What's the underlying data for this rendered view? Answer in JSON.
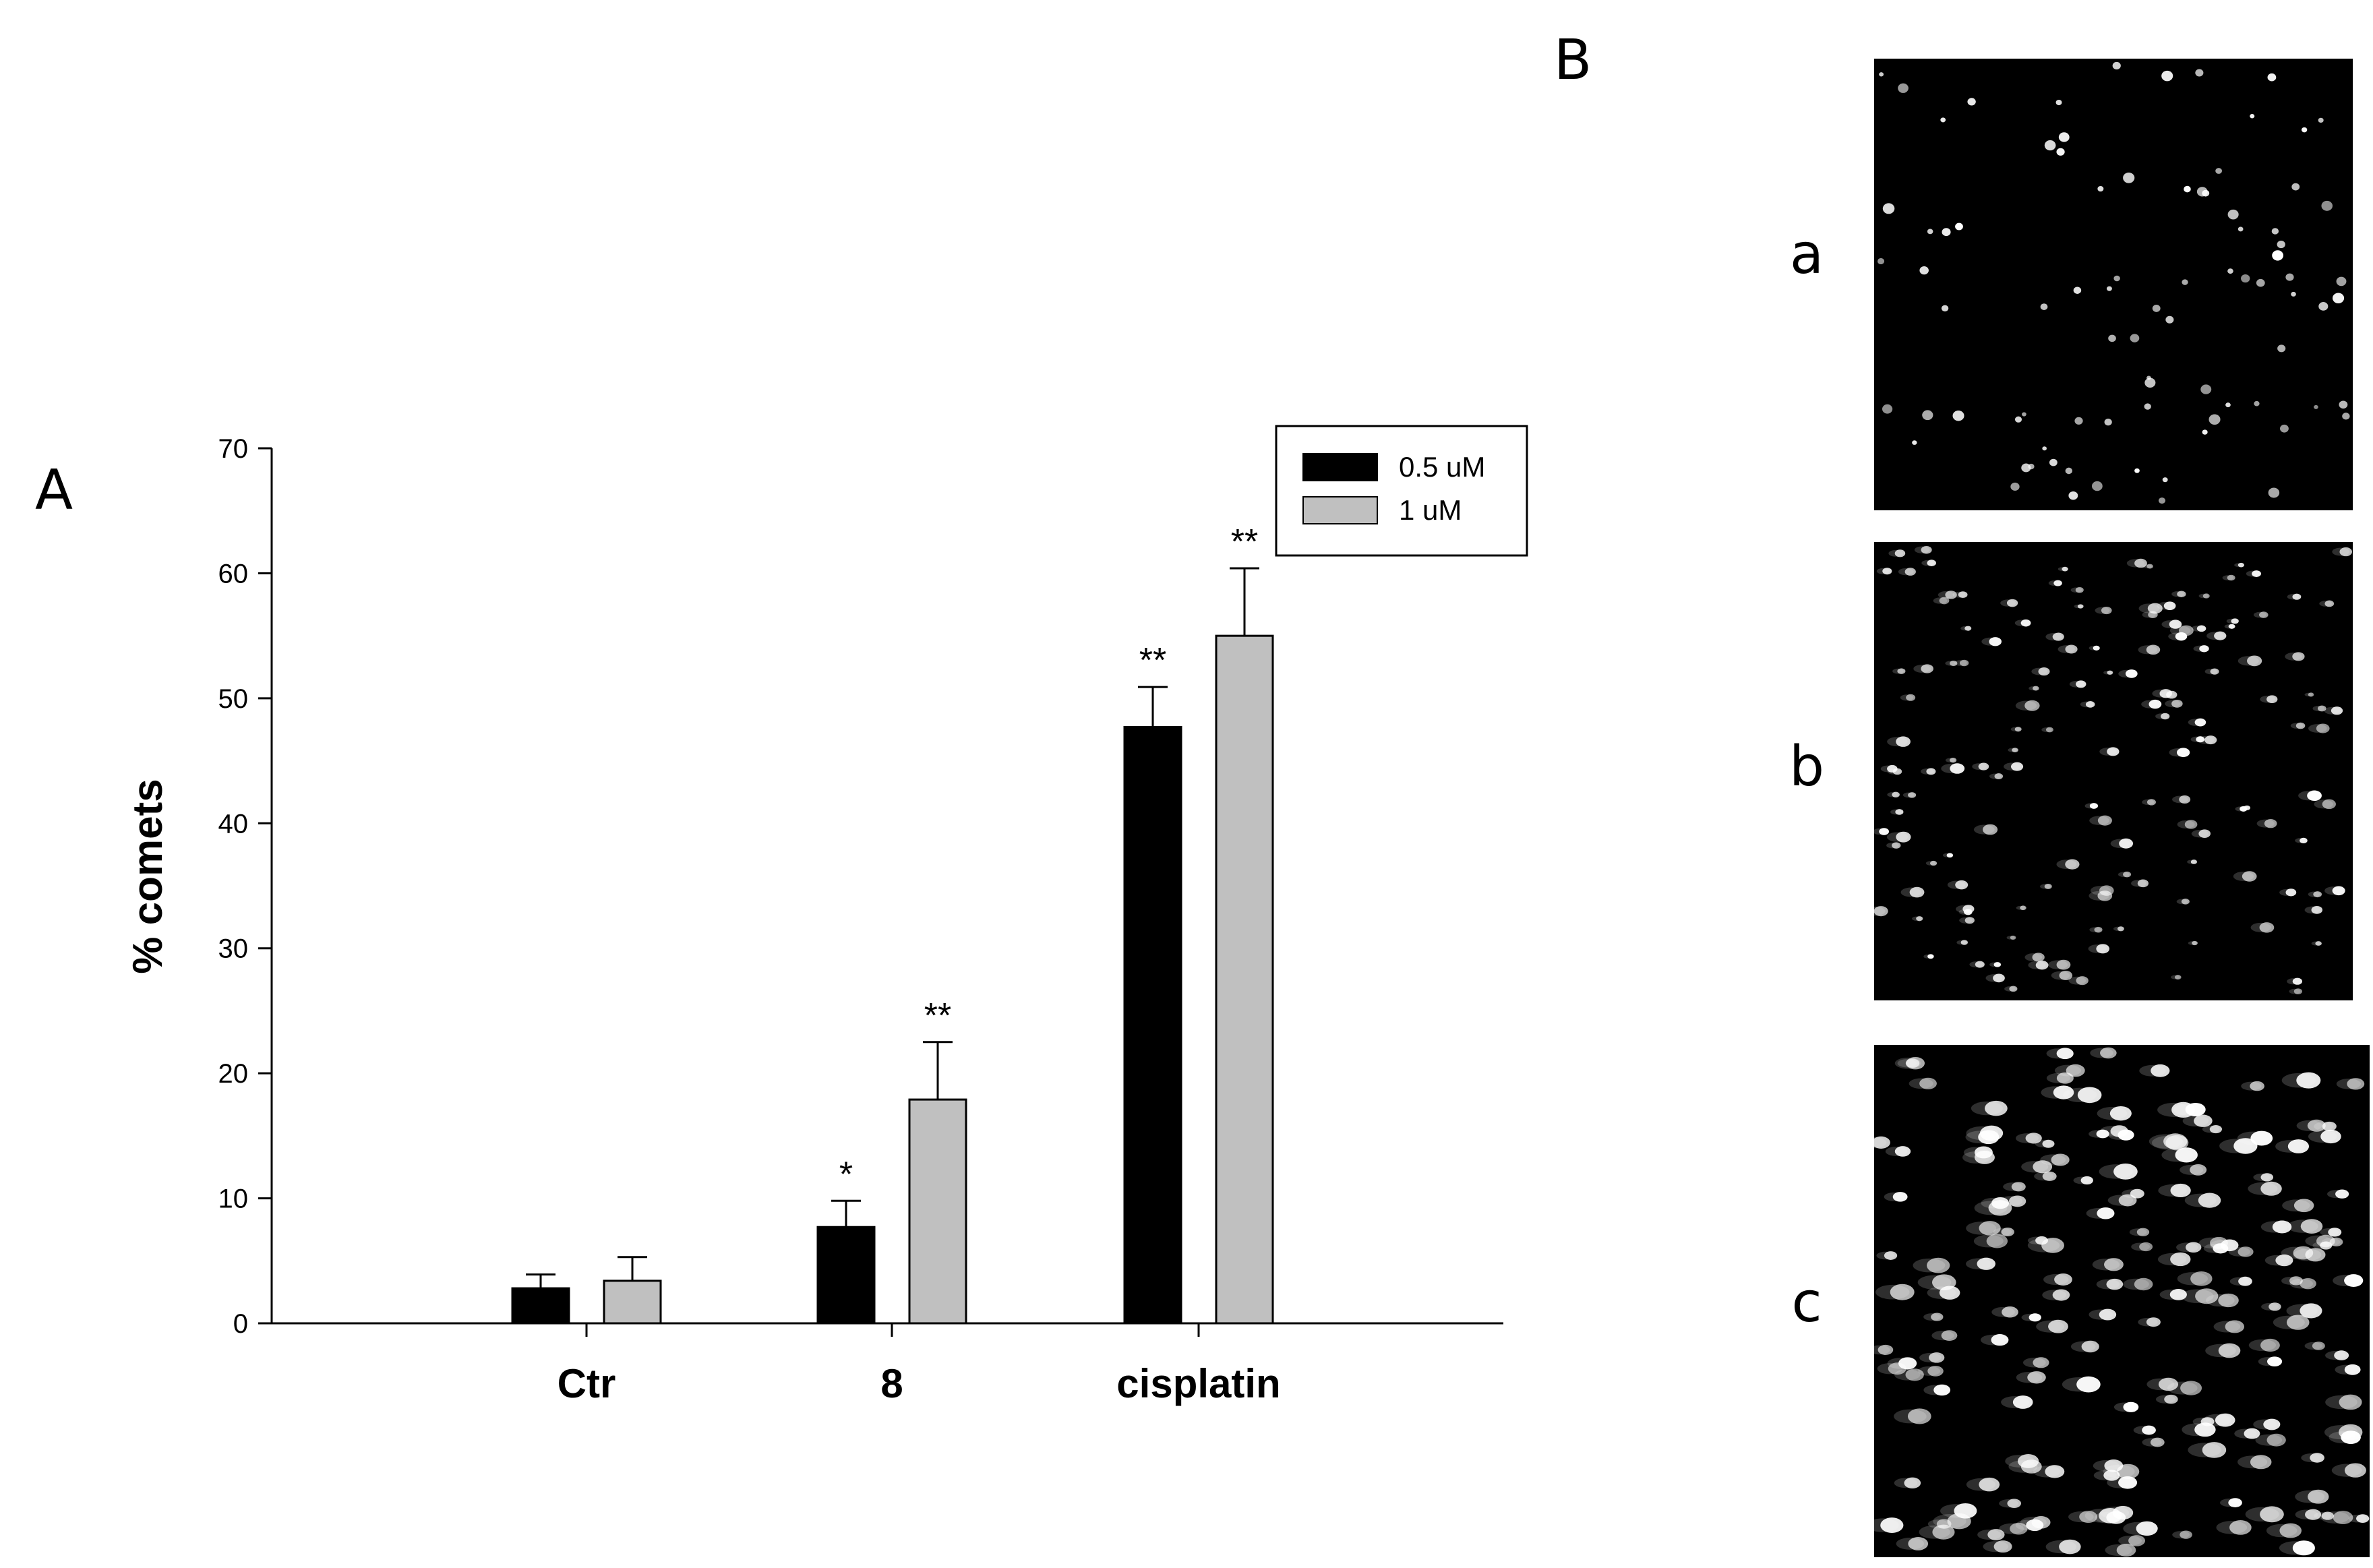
{
  "panels": {
    "A": {
      "letter": "A"
    },
    "B": {
      "letter": "B",
      "images": [
        {
          "label": "a",
          "description_level": "sparse"
        },
        {
          "label": "b",
          "description_level": "medium"
        },
        {
          "label": "c",
          "description_level": "dense"
        }
      ]
    }
  },
  "chart_data": {
    "type": "bar",
    "categories": [
      "Ctr",
      "8",
      "cisplatin"
    ],
    "ylabel": "% comets",
    "xlabel": "",
    "ylim": [
      0,
      70
    ],
    "yticks": [
      0,
      10,
      20,
      30,
      40,
      50,
      60,
      70
    ],
    "legend_position": "top-right",
    "grid": false,
    "series": [
      {
        "name": "0.5 uM",
        "color": "#000000",
        "values": [
          2.8,
          7.7,
          47.7
        ],
        "errors": [
          1.1,
          2.1,
          3.2
        ],
        "significance": [
          "",
          "*",
          "**"
        ]
      },
      {
        "name": "1 uM",
        "color": "#c0c0c0",
        "values": [
          3.4,
          17.9,
          55.0
        ],
        "errors": [
          1.9,
          4.6,
          5.4
        ],
        "significance": [
          "",
          "**",
          "**"
        ]
      }
    ]
  },
  "colors": {
    "background": "#ffffff",
    "micrograph": "#000000",
    "cell": "#ffffff"
  }
}
